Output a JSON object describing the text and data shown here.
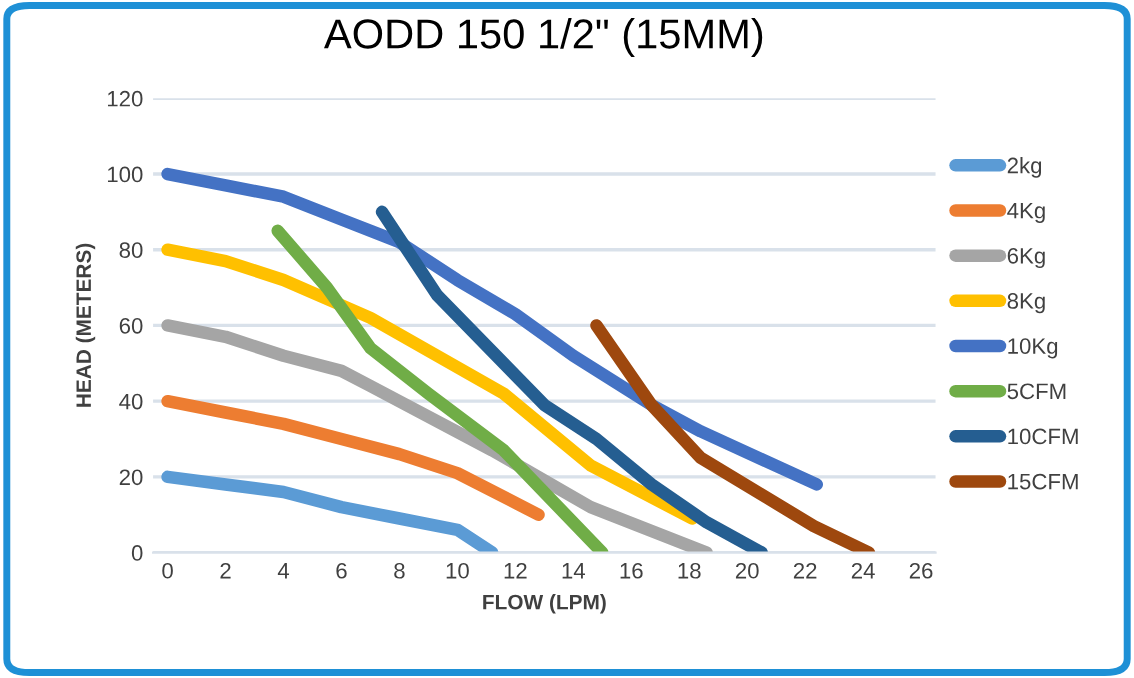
{
  "chart_data": {
    "type": "line",
    "title": "AODD 150 1/2\" (15MM)",
    "xlabel": "FLOW (LPM)",
    "ylabel": "HEAD (METERS)",
    "xlim": [
      -0.5,
      26.5
    ],
    "xticks": [
      0,
      2,
      4,
      6,
      8,
      10,
      12,
      14,
      16,
      18,
      20,
      22,
      24,
      26
    ],
    "ylim": [
      0,
      120
    ],
    "yticks": [
      0,
      20,
      40,
      60,
      80,
      100,
      120
    ],
    "grid": "y",
    "legend": "right",
    "marker": "none",
    "line_style": "solid",
    "series": [
      {
        "name": "2kg",
        "color": "#5b9bd5",
        "x": [
          0,
          2,
          4,
          6,
          8,
          10,
          11.2
        ],
        "values": [
          20,
          18,
          16,
          12,
          9,
          6,
          0
        ]
      },
      {
        "name": "4Kg",
        "color": "#ed7d31",
        "x": [
          0,
          2,
          4,
          6,
          8,
          10,
          12.8
        ],
        "values": [
          40,
          37,
          34,
          30,
          26,
          21,
          10
        ]
      },
      {
        "name": "6Kg",
        "color": "#a5a5a5",
        "x": [
          0,
          2,
          4,
          6,
          7,
          11.2,
          14.6,
          18.6
        ],
        "values": [
          60,
          57,
          52,
          48,
          44,
          27,
          12,
          0
        ]
      },
      {
        "name": "8Kg",
        "color": "#ffc000",
        "x": [
          0,
          2,
          4,
          7,
          11.6,
          14.6,
          18.1
        ],
        "values": [
          80,
          77,
          72,
          62,
          42,
          23,
          9
        ]
      },
      {
        "name": "10Kg",
        "color": "#4472c4",
        "x": [
          0,
          2,
          4,
          6,
          8,
          10,
          12,
          14,
          16.7,
          18.4,
          22.4
        ],
        "values": [
          100,
          97,
          94,
          88,
          82,
          72,
          63,
          52,
          39,
          32,
          18
        ]
      },
      {
        "name": "5CFM",
        "color": "#70ad47",
        "x": [
          3.8,
          5.5,
          7,
          9,
          11.6,
          15
        ],
        "values": [
          85,
          70,
          54,
          42,
          27,
          0
        ]
      },
      {
        "name": "10CFM",
        "color": "#255e91",
        "x": [
          7.4,
          9.3,
          13,
          14.8,
          16.7,
          18.6,
          20.5
        ],
        "values": [
          90,
          68,
          39,
          30,
          18,
          8,
          0
        ]
      },
      {
        "name": "15CFM",
        "color": "#9e480e",
        "x": [
          14.8,
          16.7,
          18.4,
          22.3,
          24.2
        ],
        "values": [
          60,
          39,
          25,
          7,
          0
        ]
      }
    ]
  }
}
